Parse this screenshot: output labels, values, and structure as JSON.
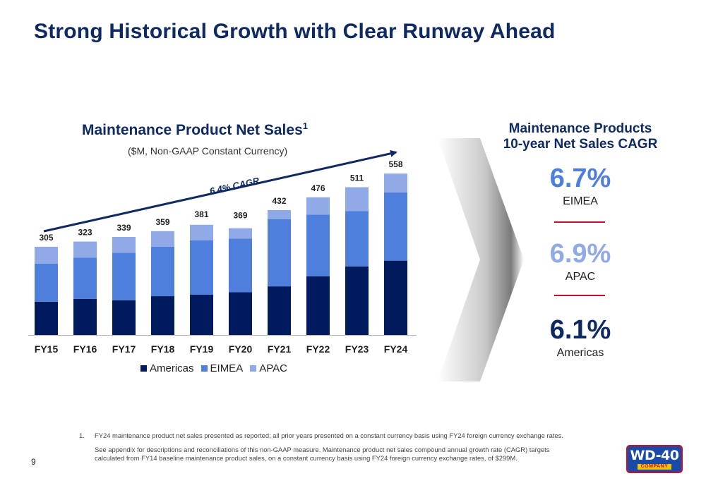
{
  "slide": {
    "title": "Strong Historical Growth with Clear Runway Ahead",
    "page_number": "9"
  },
  "chart_data": {
    "type": "bar",
    "stacked": true,
    "title": "Maintenance Product Net Sales",
    "title_superscript": "1",
    "subtitle": "($M, Non-GAAP Constant Currency)",
    "categories": [
      "FY15",
      "FY16",
      "FY17",
      "FY18",
      "FY19",
      "FY20",
      "FY21",
      "FY22",
      "FY23",
      "FY24"
    ],
    "totals": [
      305,
      323,
      339,
      359,
      381,
      369,
      432,
      476,
      511,
      558
    ],
    "series": [
      {
        "name": "Americas",
        "color": "#001a5e",
        "values": [
          115,
          125,
          120,
          134,
          139,
          148,
          168,
          203,
          237,
          257
        ]
      },
      {
        "name": "EIMEA",
        "color": "#4f7fdc",
        "values": [
          132,
          142,
          164,
          171,
          188,
          185,
          232,
          213,
          191,
          236
        ]
      },
      {
        "name": "APAC",
        "color": "#8faae6",
        "values": [
          58,
          56,
          55,
          54,
          54,
          36,
          32,
          60,
          83,
          65
        ]
      }
    ],
    "ylim": [
      0,
      600
    ],
    "grid": false,
    "legend_position": "bottom",
    "annotation": {
      "text": "6.4% CAGR"
    }
  },
  "cagr_panel": {
    "title_line1": "Maintenance Products",
    "title_line2": "10-year Net Sales CAGR",
    "items": [
      {
        "value": "6.7%",
        "label": "EIMEA",
        "color": "#4f7fdc"
      },
      {
        "value": "6.9%",
        "label": "APAC",
        "color": "#8faae6"
      },
      {
        "value": "6.1%",
        "label": "Americas",
        "color": "#0f2a62"
      }
    ]
  },
  "footnotes": {
    "note1_number": "1.",
    "note1_text": "FY24 maintenance product net sales presented as reported; all prior years presented on a constant currency basis using FY24 foreign currency exchange rates.",
    "note2_text": "See appendix for descriptions and reconciliations of this non-GAAP measure. Maintenance product net sales compound annual growth rate (CAGR) targets calculated from FY14 baseline maintenance product sales, on a constant currency basis using FY24 foreign currency exchange rates, of $299M."
  },
  "logo": {
    "main": "WD-40",
    "sub": "COMPANY"
  }
}
